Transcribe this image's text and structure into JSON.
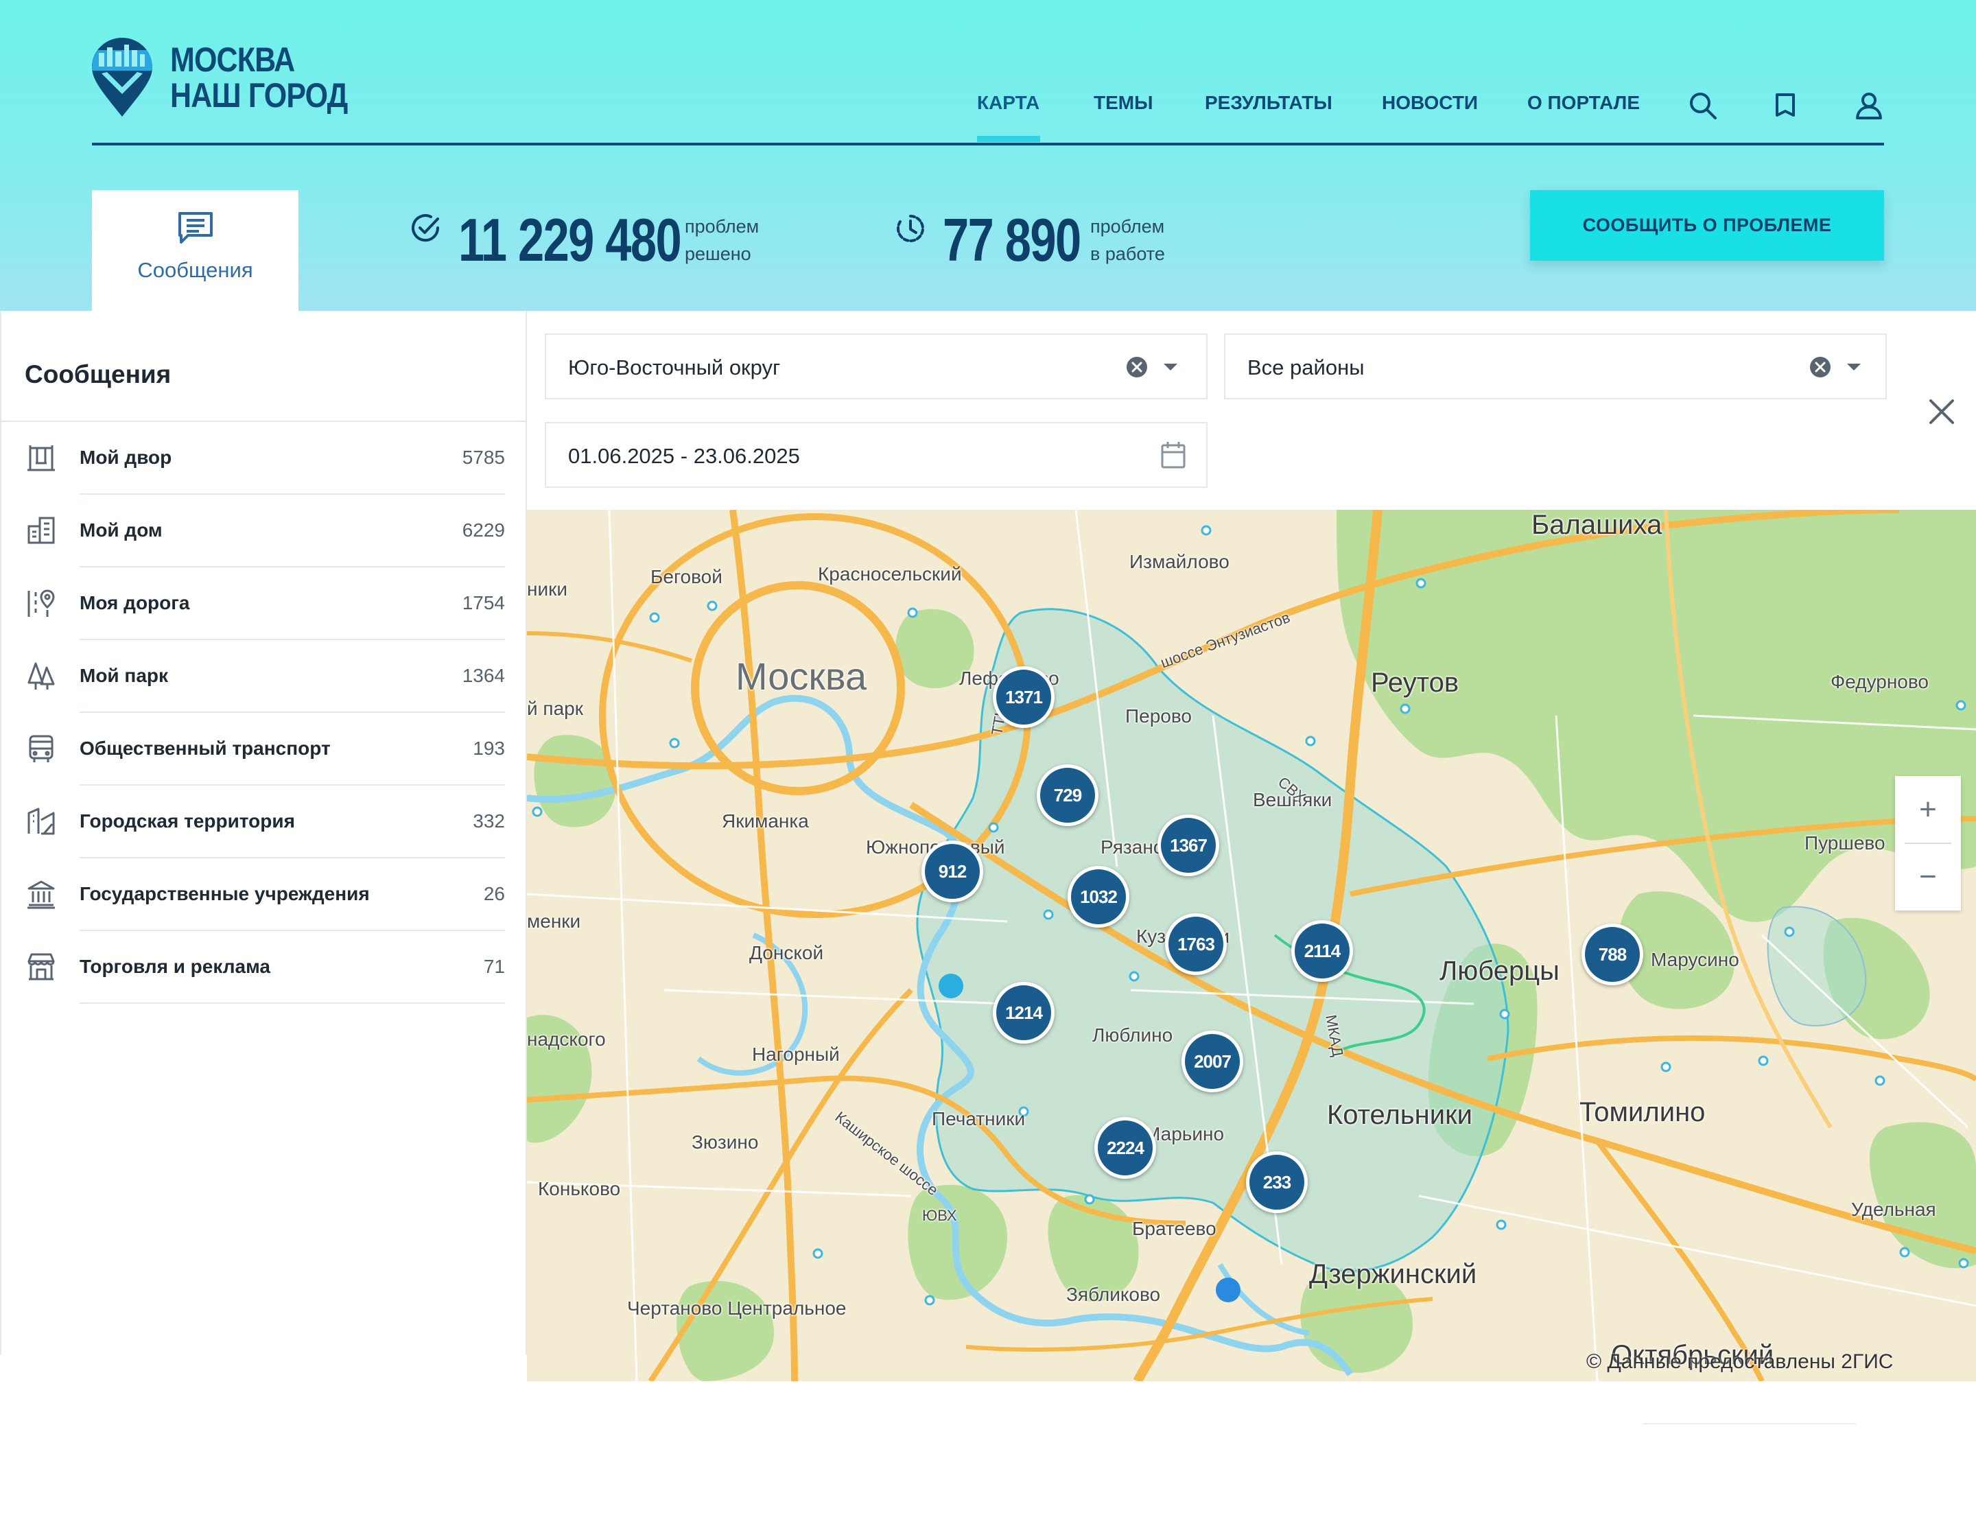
{
  "header": {
    "logo_line1": "МОСКВА",
    "logo_line2": "НАШ ГОРОД",
    "nav": [
      {
        "label": "КАРТА",
        "active": true
      },
      {
        "label": "ТЕМЫ",
        "active": false
      },
      {
        "label": "РЕЗУЛЬТАТЫ",
        "active": false
      },
      {
        "label": "НОВОСТИ",
        "active": false
      },
      {
        "label": "О ПОРТАЛЕ",
        "active": false
      }
    ],
    "icons": [
      "search-icon",
      "shield-icon",
      "user-icon"
    ]
  },
  "summary": {
    "tab_label": "Сообщения",
    "solved": {
      "value": "11 229 480",
      "caption1": "проблем",
      "caption2": "решено"
    },
    "in_work": {
      "value": "77 890",
      "caption1": "проблем",
      "caption2": "в работе"
    },
    "report_button": "СООБЩИТЬ О ПРОБЛЕМЕ"
  },
  "sidebar": {
    "title": "Сообщения",
    "categories": [
      {
        "name": "Мой двор",
        "count": "5785",
        "icon": "yard-icon"
      },
      {
        "name": "Мой дом",
        "count": "6229",
        "icon": "building-icon"
      },
      {
        "name": "Моя дорога",
        "count": "1754",
        "icon": "road-icon"
      },
      {
        "name": "Мой парк",
        "count": "1364",
        "icon": "park-icon"
      },
      {
        "name": "Общественный транспорт",
        "count": "193",
        "icon": "bus-icon"
      },
      {
        "name": "Городская территория",
        "count": "332",
        "icon": "city-territory-icon"
      },
      {
        "name": "Государственные учреждения",
        "count": "26",
        "icon": "government-icon"
      },
      {
        "name": "Торговля и реклама",
        "count": "71",
        "icon": "shop-icon"
      }
    ]
  },
  "filters": {
    "okrug": "Юго-Восточный округ",
    "district": "Все районы",
    "date_range": "01.06.2025 - 23.06.2025"
  },
  "map": {
    "clusters": [
      "1371",
      "729",
      "1367",
      "912",
      "1032",
      "1763",
      "2114",
      "788",
      "1214",
      "2007",
      "2224",
      "233"
    ],
    "places": {
      "moskva": "Москва",
      "balashikha": "Балашиха",
      "reutov": "Реутов",
      "fedurnovo": "Федурново",
      "izmaylovo": "Измайлово",
      "begovoy": "Беговой",
      "krasnoselsky": "Красносельский",
      "lefortovo": "Лефортово",
      "perovo": "Перово",
      "veshnyaki": "Вешняки",
      "yakimanka": "Якиманка",
      "yuzhnoportovy": "Южнопортовый",
      "ryazansky": "Рязанский",
      "kuzminki": "Кузьминки",
      "donskoy": "Донской",
      "lyubertsy": "Люберцы",
      "marusino": "Марусино",
      "purshevo": "Пуршево",
      "lyublino": "Люблино",
      "nagorny": "Нагорный",
      "kotelniki": "Котельники",
      "tomilino": "Томилино",
      "pechatniki": "Печатники",
      "zyuzino": "Зюзино",
      "maryino": "Марьино",
      "konkovo": "Коньково",
      "udelnaya": "Удельная",
      "brateevo": "Братеево",
      "dzerzhinsky": "Дзержинский",
      "zyablikovo": "Зябликово",
      "chertanovo": "Чертаново Центральное",
      "oktyabrsky": "Октябрьский",
      "park": "й парк",
      "niki": "ники",
      "menki": "менки",
      "nadskogo": "надского",
      "entuziastov": "шоссе Энтузиастов",
      "kashirskoe": "Каширское шоссе",
      "ttk": "ТТК",
      "svkh": "СВХ",
      "yuvkh": "ЮВХ",
      "mkad": "МКАД"
    },
    "zoom_in": "+",
    "zoom_out": "−",
    "attribution": "© Данные предоставлены 2ГИС"
  },
  "colors": {
    "header_gradient_top": "#6ef2ea",
    "brand_dark": "#0e4a75",
    "accent_cyan": "#19e0e4",
    "marker": "#1b5c8e"
  }
}
